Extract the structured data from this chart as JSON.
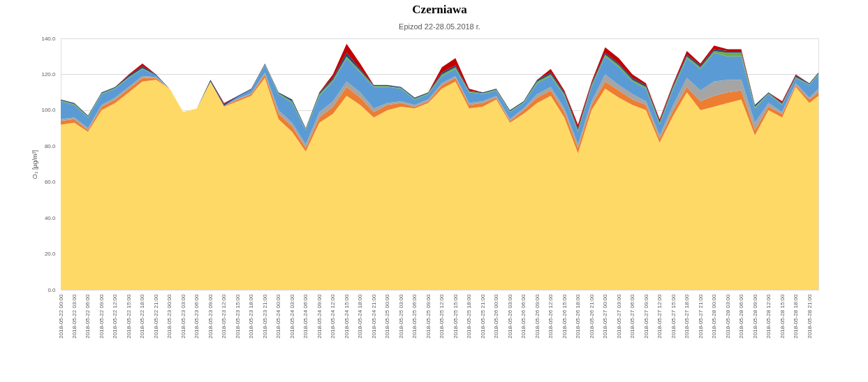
{
  "chart_data": {
    "type": "area",
    "title": "Czerniawa",
    "subtitle": "Epizod 22-28.05.2018 r.",
    "ylabel": "O₃ [µg/m³]",
    "stacked": true,
    "grid": "y",
    "x": [
      "2018-05-22T00:00",
      "2018-05-22T03:00",
      "2018-05-22T06:00",
      "2018-05-22T09:00",
      "2018-05-22T12:00",
      "2018-05-22T15:00",
      "2018-05-22T18:00",
      "2018-05-22T21:00",
      "2018-05-23T00:00",
      "2018-05-23T03:00",
      "2018-05-23T06:00",
      "2018-05-23T09:00",
      "2018-05-23T12:00",
      "2018-05-23T15:00",
      "2018-05-23T18:00",
      "2018-05-23T21:00",
      "2018-05-24T00:00",
      "2018-05-24T03:00",
      "2018-05-24T06:00",
      "2018-05-24T09:00",
      "2018-05-24T12:00",
      "2018-05-24T15:00",
      "2018-05-24T18:00",
      "2018-05-24T21:00",
      "2018-05-25T00:00",
      "2018-05-25T03:00",
      "2018-05-25T06:00",
      "2018-05-25T09:00",
      "2018-05-25T12:00",
      "2018-05-25T15:00",
      "2018-05-25T18:00",
      "2018-05-25T21:00",
      "2018-05-26T00:00",
      "2018-05-26T03:00",
      "2018-05-26T06:00",
      "2018-05-26T09:00",
      "2018-05-26T12:00",
      "2018-05-26T15:00",
      "2018-05-26T18:00",
      "2018-05-26T21:00",
      "2018-05-27T00:00",
      "2018-05-27T03:00",
      "2018-05-27T06:00",
      "2018-05-27T09:00",
      "2018-05-27T12:00",
      "2018-05-27T15:00",
      "2018-05-27T18:00",
      "2018-05-27T21:00",
      "2018-05-28T00:00",
      "2018-05-28T03:00",
      "2018-05-28T06:00",
      "2018-05-28T09:00",
      "2018-05-28T12:00",
      "2018-05-28T15:00",
      "2018-05-28T18:00",
      "2018-05-28T21:00",
      "2018-05-28T23:00"
    ],
    "xlim": [
      "2018-05-22T00:00",
      "2018-05-28T23:00"
    ],
    "xticks": [
      {
        "value": "2018-05-22T00:00",
        "label": "2018-05-22 00:00"
      },
      {
        "value": "2018-05-22T03:00",
        "label": "2018-05-22 03:00"
      },
      {
        "value": "2018-05-22T06:00",
        "label": "2018-05-22 06:00"
      },
      {
        "value": "2018-05-22T09:00",
        "label": "2018-05-22 09:00"
      },
      {
        "value": "2018-05-22T12:00",
        "label": "2018-05-22 12:00"
      },
      {
        "value": "2018-05-22T15:00",
        "label": "2018-05-22 15:00"
      },
      {
        "value": "2018-05-22T18:00",
        "label": "2018-05-22 18:00"
      },
      {
        "value": "2018-05-22T21:00",
        "label": "2018-05-22 21:00"
      },
      {
        "value": "2018-05-23T00:00",
        "label": "2018-05-23 00:00"
      },
      {
        "value": "2018-05-23T03:00",
        "label": "2018-05-23 03:00"
      },
      {
        "value": "2018-05-23T06:00",
        "label": "2018-05-23 06:00"
      },
      {
        "value": "2018-05-23T09:00",
        "label": "2018-05-23 09:00"
      },
      {
        "value": "2018-05-23T12:00",
        "label": "2018-05-23 12:00"
      },
      {
        "value": "2018-05-23T15:00",
        "label": "2018-05-23 15:00"
      },
      {
        "value": "2018-05-23T18:00",
        "label": "2018-05-23 18:00"
      },
      {
        "value": "2018-05-23T21:00",
        "label": "2018-05-23 21:00"
      },
      {
        "value": "2018-05-24T00:00",
        "label": "2018-05-24 00:00"
      },
      {
        "value": "2018-05-24T03:00",
        "label": "2018-05-24 03:00"
      },
      {
        "value": "2018-05-24T06:00",
        "label": "2018-05-24 06:00"
      },
      {
        "value": "2018-05-24T09:00",
        "label": "2018-05-24 09:00"
      },
      {
        "value": "2018-05-24T12:00",
        "label": "2018-05-24 12:00"
      },
      {
        "value": "2018-05-24T15:00",
        "label": "2018-05-24 15:00"
      },
      {
        "value": "2018-05-24T18:00",
        "label": "2018-05-24 18:00"
      },
      {
        "value": "2018-05-24T21:00",
        "label": "2018-05-24 21:00"
      },
      {
        "value": "2018-05-25T00:00",
        "label": "2018-05-25 00:00"
      },
      {
        "value": "2018-05-25T03:00",
        "label": "2018-05-25 03:00"
      },
      {
        "value": "2018-05-25T06:00",
        "label": "2018-05-25 06:00"
      },
      {
        "value": "2018-05-25T09:00",
        "label": "2018-05-25 09:00"
      },
      {
        "value": "2018-05-25T12:00",
        "label": "2018-05-25 12:00"
      },
      {
        "value": "2018-05-25T15:00",
        "label": "2018-05-25 15:00"
      },
      {
        "value": "2018-05-25T18:00",
        "label": "2018-05-25 18:00"
      },
      {
        "value": "2018-05-25T21:00",
        "label": "2018-05-25 21:00"
      },
      {
        "value": "2018-05-26T00:00",
        "label": "2018-05-26 00:00"
      },
      {
        "value": "2018-05-26T03:00",
        "label": "2018-05-26 03:00"
      },
      {
        "value": "2018-05-26T06:00",
        "label": "2018-05-26 06:00"
      },
      {
        "value": "2018-05-26T09:00",
        "label": "2018-05-26 09:00"
      },
      {
        "value": "2018-05-26T12:00",
        "label": "2018-05-26 12:00"
      },
      {
        "value": "2018-05-26T15:00",
        "label": "2018-05-26 15:00"
      },
      {
        "value": "2018-05-26T18:00",
        "label": "2018-05-26 18:00"
      },
      {
        "value": "2018-05-26T21:00",
        "label": "2018-05-26 21:00"
      },
      {
        "value": "2018-05-27T00:00",
        "label": "2018-05-27 00:00"
      },
      {
        "value": "2018-05-27T03:00",
        "label": "2018-05-27 03:00"
      },
      {
        "value": "2018-05-27T06:00",
        "label": "2018-05-27 06:00"
      },
      {
        "value": "2018-05-27T09:00",
        "label": "2018-05-27 09:00"
      },
      {
        "value": "2018-05-27T12:00",
        "label": "2018-05-27 12:00"
      },
      {
        "value": "2018-05-27T15:00",
        "label": "2018-05-27 15:00"
      },
      {
        "value": "2018-05-27T18:00",
        "label": "2018-05-27 18:00"
      },
      {
        "value": "2018-05-27T21:00",
        "label": "2018-05-27 21:00"
      },
      {
        "value": "2018-05-28T00:00",
        "label": "2018-05-28 00:00"
      },
      {
        "value": "2018-05-28T03:00",
        "label": "2018-05-28 03:00"
      },
      {
        "value": "2018-05-28T06:00",
        "label": "2018-05-28 06:00"
      },
      {
        "value": "2018-05-28T09:00",
        "label": "2018-05-28 09:00"
      },
      {
        "value": "2018-05-28T12:00",
        "label": "2018-05-28 12:00"
      },
      {
        "value": "2018-05-28T15:00",
        "label": "2018-05-28 15:00"
      },
      {
        "value": "2018-05-28T18:00",
        "label": "2018-05-28 18:00"
      },
      {
        "value": "2018-05-28T21:00",
        "label": "2018-05-28 21:00"
      }
    ],
    "ylim": [
      0,
      140
    ],
    "yticks": [
      {
        "value": 0,
        "label": "0.0"
      },
      {
        "value": 20,
        "label": "20.0"
      },
      {
        "value": 40,
        "label": "40.0"
      },
      {
        "value": 60,
        "label": "60.0"
      },
      {
        "value": 80,
        "label": "80.0"
      },
      {
        "value": 100,
        "label": "100.0"
      },
      {
        "value": 120,
        "label": "120.0"
      },
      {
        "value": 140,
        "label": "140.0"
      }
    ],
    "series": [
      {
        "color": "#ffd966",
        "values": [
          92,
          93,
          88,
          100,
          104,
          110,
          116,
          117,
          112,
          99,
          101,
          116,
          102,
          105,
          108,
          118,
          95,
          88,
          77,
          93,
          98,
          108,
          103,
          96,
          100,
          102,
          101,
          104,
          112,
          116,
          101,
          102,
          106,
          93,
          98,
          104,
          108,
          96,
          76,
          100,
          112,
          107,
          103,
          100,
          82,
          97,
          110,
          100,
          102,
          104,
          106,
          86,
          100,
          96,
          113,
          104,
          108
        ]
      },
      {
        "color": "#ed7d31",
        "values": [
          2,
          2,
          1,
          2,
          2,
          2,
          2,
          1,
          0,
          0,
          0,
          0,
          0.5,
          1,
          1,
          2,
          3,
          3,
          2,
          3,
          4,
          5,
          4,
          3,
          3,
          2,
          1,
          1,
          2,
          2,
          2,
          2,
          1,
          1,
          2,
          3,
          3,
          3,
          3,
          3,
          4,
          4,
          3,
          3,
          2,
          3,
          3,
          5,
          6,
          6,
          5,
          3,
          2,
          2,
          1,
          2,
          2
        ]
      },
      {
        "color": "#a5a5a5",
        "values": [
          1,
          1,
          1,
          1,
          1,
          1,
          1,
          0.5,
          0,
          0,
          0,
          0,
          0,
          0.5,
          0.5,
          1,
          2,
          2,
          2,
          3,
          3,
          3,
          3,
          2,
          1,
          1,
          1,
          1,
          1,
          1,
          1,
          1,
          1,
          1,
          1,
          2,
          2,
          2,
          2,
          2,
          4,
          3,
          3,
          2,
          2,
          3,
          5,
          6,
          8,
          7,
          6,
          4,
          2,
          1,
          1,
          1,
          2
        ]
      },
      {
        "color": "#5b9bd5",
        "values": [
          10,
          7,
          6,
          6,
          5,
          5,
          4,
          1,
          0,
          0,
          0,
          0,
          0,
          1,
          2,
          4,
          9,
          11,
          8,
          9,
          11,
          13,
          11,
          12,
          9,
          7,
          3,
          3,
          4,
          4,
          6,
          4,
          3,
          4,
          3,
          6,
          6,
          7,
          7,
          8,
          10,
          10,
          7,
          7,
          6,
          9,
          11,
          12,
          16,
          13,
          13,
          8,
          5,
          4,
          3,
          7,
          8
        ]
      },
      {
        "color": "#70ad47",
        "values": [
          0.5,
          0.5,
          0.5,
          0.5,
          0.5,
          0.5,
          0.5,
          0,
          0,
          0,
          0,
          0,
          0,
          0,
          0,
          0.5,
          0.5,
          1,
          0.5,
          1,
          1,
          1,
          1,
          0.5,
          0.5,
          0.5,
          0.5,
          0.5,
          1,
          1,
          0.5,
          0.5,
          0.5,
          0.5,
          0.5,
          1,
          1,
          1,
          1,
          1,
          1,
          1,
          1,
          1,
          1,
          1,
          1,
          1,
          1,
          2,
          2,
          1,
          0.5,
          0.5,
          0.5,
          0.5,
          0.5
        ]
      },
      {
        "color": "#264478",
        "values": [
          0.5,
          0.5,
          0.5,
          0.5,
          0.5,
          1,
          1,
          0.5,
          0,
          0,
          0,
          1,
          1,
          0.5,
          0.5,
          0.5,
          0.5,
          1,
          0.5,
          1,
          1,
          2,
          1,
          0.5,
          0.5,
          0.5,
          0.5,
          0.5,
          1,
          1,
          0.5,
          0.5,
          0.5,
          0.5,
          0.5,
          1,
          1,
          1,
          1,
          1,
          1,
          1,
          1,
          1,
          1,
          1,
          1,
          1,
          1,
          1,
          1,
          1,
          0.5,
          0.5,
          1,
          0.5,
          0.5
        ]
      },
      {
        "color": "#c00000",
        "values": [
          0,
          0,
          0,
          0,
          0,
          0.5,
          1.5,
          0,
          0,
          0,
          0,
          0,
          0.5,
          0,
          0,
          0,
          0,
          0,
          0,
          0,
          2,
          5,
          3,
          0,
          0,
          0,
          0,
          0,
          3,
          4,
          1,
          0,
          0,
          0,
          0,
          0,
          2,
          1,
          2,
          1,
          3,
          3,
          2,
          1,
          1,
          1,
          2,
          1,
          2,
          1,
          1,
          0,
          0,
          1,
          0.5,
          0,
          0
        ]
      }
    ]
  }
}
